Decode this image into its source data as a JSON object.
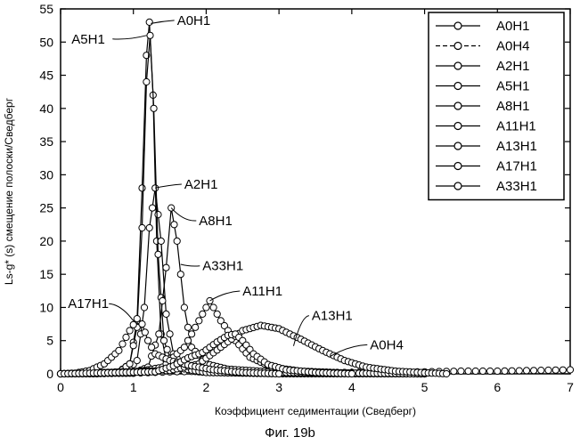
{
  "figure_caption": "Фиг. 19b",
  "chart_data": {
    "type": "line",
    "xlabel": "Коэффициент седиментации (Сведберг)",
    "ylabel": "Ls-g* (s) смещение полоски/Сведберг",
    "xlim": [
      0,
      7
    ],
    "ylim": [
      0,
      55
    ],
    "x_ticks": [
      0,
      1,
      2,
      3,
      4,
      5,
      6,
      7
    ],
    "y_ticks": [
      0,
      5,
      10,
      15,
      20,
      25,
      30,
      35,
      40,
      45,
      50,
      55
    ],
    "grid": false,
    "legend_position": "top-right",
    "series": [
      {
        "name": "A0H1",
        "line": "solid",
        "points": [
          [
            0,
            0
          ],
          [
            0.5,
            0
          ],
          [
            0.8,
            0.3
          ],
          [
            0.95,
            1.5
          ],
          [
            1.05,
            8
          ],
          [
            1.12,
            28
          ],
          [
            1.18,
            48
          ],
          [
            1.22,
            53
          ],
          [
            1.27,
            42
          ],
          [
            1.32,
            20
          ],
          [
            1.38,
            6
          ],
          [
            1.45,
            2
          ],
          [
            1.6,
            0.6
          ],
          [
            2,
            0.2
          ],
          [
            3,
            0
          ],
          [
            5,
            0
          ]
        ]
      },
      {
        "name": "A0H4",
        "line": "dashed",
        "points": [
          [
            0,
            0
          ],
          [
            1,
            0.1
          ],
          [
            1.5,
            0.3
          ],
          [
            2,
            0.4
          ],
          [
            2.5,
            0.4
          ],
          [
            3,
            0.3
          ],
          [
            3.5,
            0.2
          ],
          [
            4,
            0.2
          ],
          [
            4.5,
            0.2
          ],
          [
            5,
            0.3
          ],
          [
            5.5,
            0.4
          ],
          [
            6,
            0.4
          ],
          [
            6.5,
            0.5
          ],
          [
            7,
            0.6
          ]
        ]
      },
      {
        "name": "A2H1",
        "line": "solid",
        "points": [
          [
            0,
            0
          ],
          [
            0.9,
            0.2
          ],
          [
            1.05,
            2
          ],
          [
            1.15,
            10
          ],
          [
            1.22,
            22
          ],
          [
            1.3,
            28
          ],
          [
            1.38,
            20
          ],
          [
            1.45,
            9
          ],
          [
            1.55,
            3
          ],
          [
            1.7,
            1
          ],
          [
            2,
            0.3
          ],
          [
            3,
            0.1
          ],
          [
            5,
            0
          ]
        ]
      },
      {
        "name": "A5H1",
        "line": "solid",
        "points": [
          [
            0,
            0
          ],
          [
            0.8,
            0.2
          ],
          [
            0.95,
            1.5
          ],
          [
            1.05,
            7
          ],
          [
            1.12,
            22
          ],
          [
            1.18,
            44
          ],
          [
            1.23,
            51
          ],
          [
            1.28,
            40
          ],
          [
            1.34,
            18
          ],
          [
            1.42,
            5
          ],
          [
            1.55,
            1
          ],
          [
            2,
            0.2
          ],
          [
            5,
            0
          ]
        ]
      },
      {
        "name": "A8H1",
        "line": "solid",
        "points": [
          [
            0,
            0
          ],
          [
            1,
            0.1
          ],
          [
            1.2,
            1
          ],
          [
            1.35,
            6
          ],
          [
            1.45,
            16
          ],
          [
            1.52,
            25
          ],
          [
            1.6,
            20
          ],
          [
            1.7,
            10
          ],
          [
            1.8,
            4
          ],
          [
            2,
            1.5
          ],
          [
            2.3,
            0.7
          ],
          [
            3,
            0.2
          ],
          [
            5,
            0
          ]
        ]
      },
      {
        "name": "A11H1",
        "line": "solid",
        "points": [
          [
            0,
            0
          ],
          [
            1,
            0.2
          ],
          [
            1.4,
            1
          ],
          [
            1.7,
            4
          ],
          [
            1.9,
            8
          ],
          [
            2.05,
            11
          ],
          [
            2.2,
            8
          ],
          [
            2.4,
            5
          ],
          [
            2.6,
            2.5
          ],
          [
            2.9,
            1
          ],
          [
            3.3,
            0.4
          ],
          [
            4,
            0.1
          ],
          [
            5,
            0
          ]
        ]
      },
      {
        "name": "A13H1",
        "line": "solid",
        "points": [
          [
            0,
            0
          ],
          [
            1.5,
            0.5
          ],
          [
            1.9,
            1.5
          ],
          [
            2.2,
            4
          ],
          [
            2.5,
            6.5
          ],
          [
            2.75,
            7.3
          ],
          [
            3.0,
            6.8
          ],
          [
            3.3,
            5.2
          ],
          [
            3.6,
            3.5
          ],
          [
            3.9,
            2
          ],
          [
            4.2,
            1
          ],
          [
            4.6,
            0.4
          ],
          [
            5,
            0.15
          ],
          [
            5.3,
            0
          ]
        ]
      },
      {
        "name": "A17H1",
        "line": "solid",
        "points": [
          [
            0,
            0
          ],
          [
            0.2,
            0.1
          ],
          [
            0.4,
            0.5
          ],
          [
            0.6,
            1.5
          ],
          [
            0.8,
            3.5
          ],
          [
            0.95,
            6.5
          ],
          [
            1.05,
            8.3
          ],
          [
            1.12,
            7.5
          ],
          [
            1.2,
            5
          ],
          [
            1.3,
            3
          ],
          [
            1.5,
            2
          ],
          [
            1.8,
            1.2
          ],
          [
            2.1,
            0.6
          ],
          [
            2.5,
            0.2
          ],
          [
            3,
            0
          ]
        ]
      },
      {
        "name": "A33H1",
        "line": "solid",
        "points": [
          [
            0,
            0
          ],
          [
            1.3,
            0.3
          ],
          [
            1.55,
            1.2
          ],
          [
            1.75,
            2.4
          ],
          [
            1.95,
            3.2
          ],
          [
            2.15,
            4.8
          ],
          [
            2.3,
            5.8
          ],
          [
            2.4,
            6
          ],
          [
            2.5,
            5
          ],
          [
            2.65,
            3
          ],
          [
            2.85,
            1.4
          ],
          [
            3.1,
            0.6
          ],
          [
            3.5,
            0.2
          ],
          [
            4,
            0
          ]
        ]
      }
    ],
    "annotations": [
      {
        "text": "A0H1",
        "series": "A0H1",
        "at": [
          1.24,
          52.8
        ],
        "label": [
          1.6,
          52.6
        ]
      },
      {
        "text": "A5H1",
        "series": "A5H1",
        "at": [
          1.18,
          51
        ],
        "label": [
          0.15,
          49.8
        ]
      },
      {
        "text": "A2H1",
        "series": "A2H1",
        "at": [
          1.3,
          28
        ],
        "label": [
          1.7,
          27.9
        ]
      },
      {
        "text": "A8H1",
        "series": "A8H1",
        "at": [
          1.52,
          25
        ],
        "label": [
          1.9,
          22.4
        ]
      },
      {
        "text": "A33H1",
        "series": "A33H1",
        "at": [
          1.65,
          16.5
        ],
        "label": [
          1.95,
          15.6
        ]
      },
      {
        "text": "A11H1",
        "series": "A11H1",
        "at": [
          2.05,
          11
        ],
        "label": [
          2.5,
          11.8
        ]
      },
      {
        "text": "A17H1",
        "series": "A17H1",
        "at": [
          1.0,
          8
        ],
        "label": [
          0.1,
          9.9
        ]
      },
      {
        "text": "A13H1",
        "series": "A13H1",
        "at": [
          3.2,
          4.2
        ],
        "label": [
          3.45,
          8.1
        ]
      },
      {
        "text": "A0H4",
        "series": "A0H4",
        "at": [
          3.7,
          2.6
        ],
        "label": [
          4.25,
          3.7
        ]
      }
    ]
  }
}
